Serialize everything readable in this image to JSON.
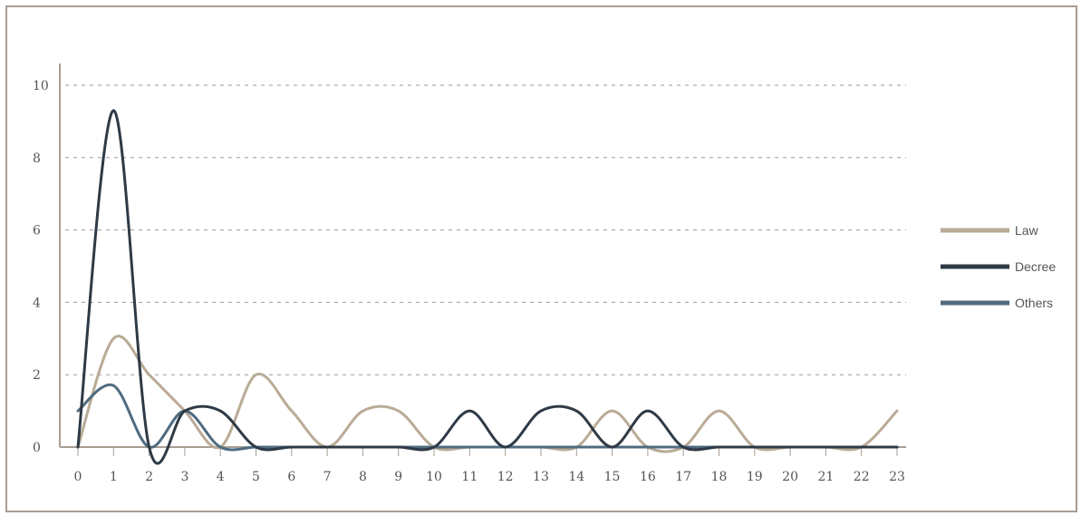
{
  "chart_data": {
    "type": "line",
    "title": "",
    "xlabel": "",
    "ylabel": "",
    "x": [
      0,
      1,
      2,
      3,
      4,
      5,
      6,
      7,
      8,
      9,
      10,
      11,
      12,
      13,
      14,
      15,
      16,
      17,
      18,
      19,
      20,
      21,
      22,
      23
    ],
    "x_ticks": [
      "0",
      "1",
      "2",
      "3",
      "4",
      "5",
      "6",
      "7",
      "8",
      "9",
      "10",
      "11",
      "12",
      "13",
      "14",
      "15",
      "16",
      "17",
      "18",
      "19",
      "20",
      "21",
      "22",
      "23"
    ],
    "y_ticks": [
      "0",
      "2",
      "4",
      "6",
      "8",
      "10"
    ],
    "ylim": [
      0,
      10
    ],
    "grid": "horizontal dashed",
    "legend_position": "right",
    "series": [
      {
        "name": "Law",
        "color": "#b9ab96",
        "values": [
          0,
          3,
          2,
          1,
          0,
          2,
          1,
          0,
          1,
          1,
          0,
          0,
          0,
          0,
          0,
          1,
          0,
          0,
          1,
          0,
          0,
          0,
          0,
          1
        ]
      },
      {
        "name": "Decree",
        "color": "#2e3a45",
        "values": [
          0,
          9.3,
          0,
          1,
          1,
          0,
          0,
          0,
          0,
          0,
          0,
          1,
          0,
          1,
          1,
          0,
          1,
          0,
          0,
          0,
          0,
          0,
          0,
          0
        ]
      },
      {
        "name": "Others",
        "color": "#4f6b80",
        "values": [
          1,
          1.7,
          0,
          1,
          0,
          0,
          0,
          0,
          0,
          0,
          0,
          0,
          0,
          0,
          0,
          0,
          0,
          0,
          0,
          0,
          0,
          0,
          0,
          0
        ]
      }
    ]
  }
}
